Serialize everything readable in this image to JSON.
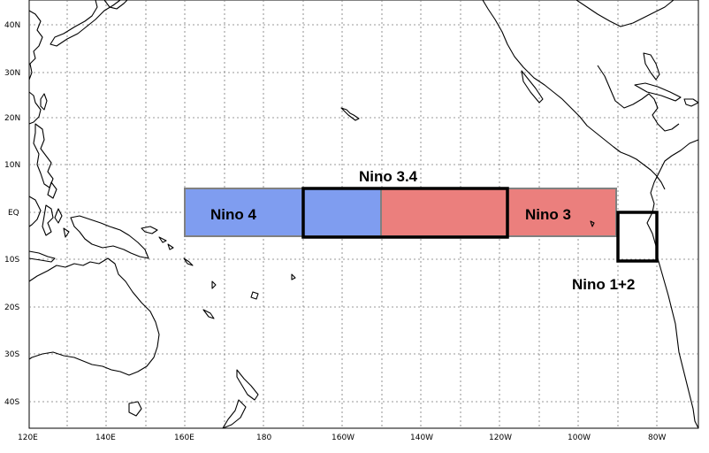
{
  "map": {
    "lat_labels": [
      "40N",
      "30N",
      "20N",
      "10N",
      "EQ",
      "10S",
      "20S",
      "30S",
      "40S"
    ],
    "lon_labels": [
      "120E",
      "140E",
      "160E",
      "180",
      "160W",
      "140W",
      "120W",
      "100W",
      "80W"
    ]
  },
  "regions": {
    "nino4": {
      "label": "Nino 4",
      "color": "#7f9df0"
    },
    "nino34": {
      "label": "Nino 3.4"
    },
    "nino3": {
      "label": "Nino 3",
      "color": "#eb7f7d"
    },
    "nino12": {
      "label": "Nino 1+2"
    }
  }
}
